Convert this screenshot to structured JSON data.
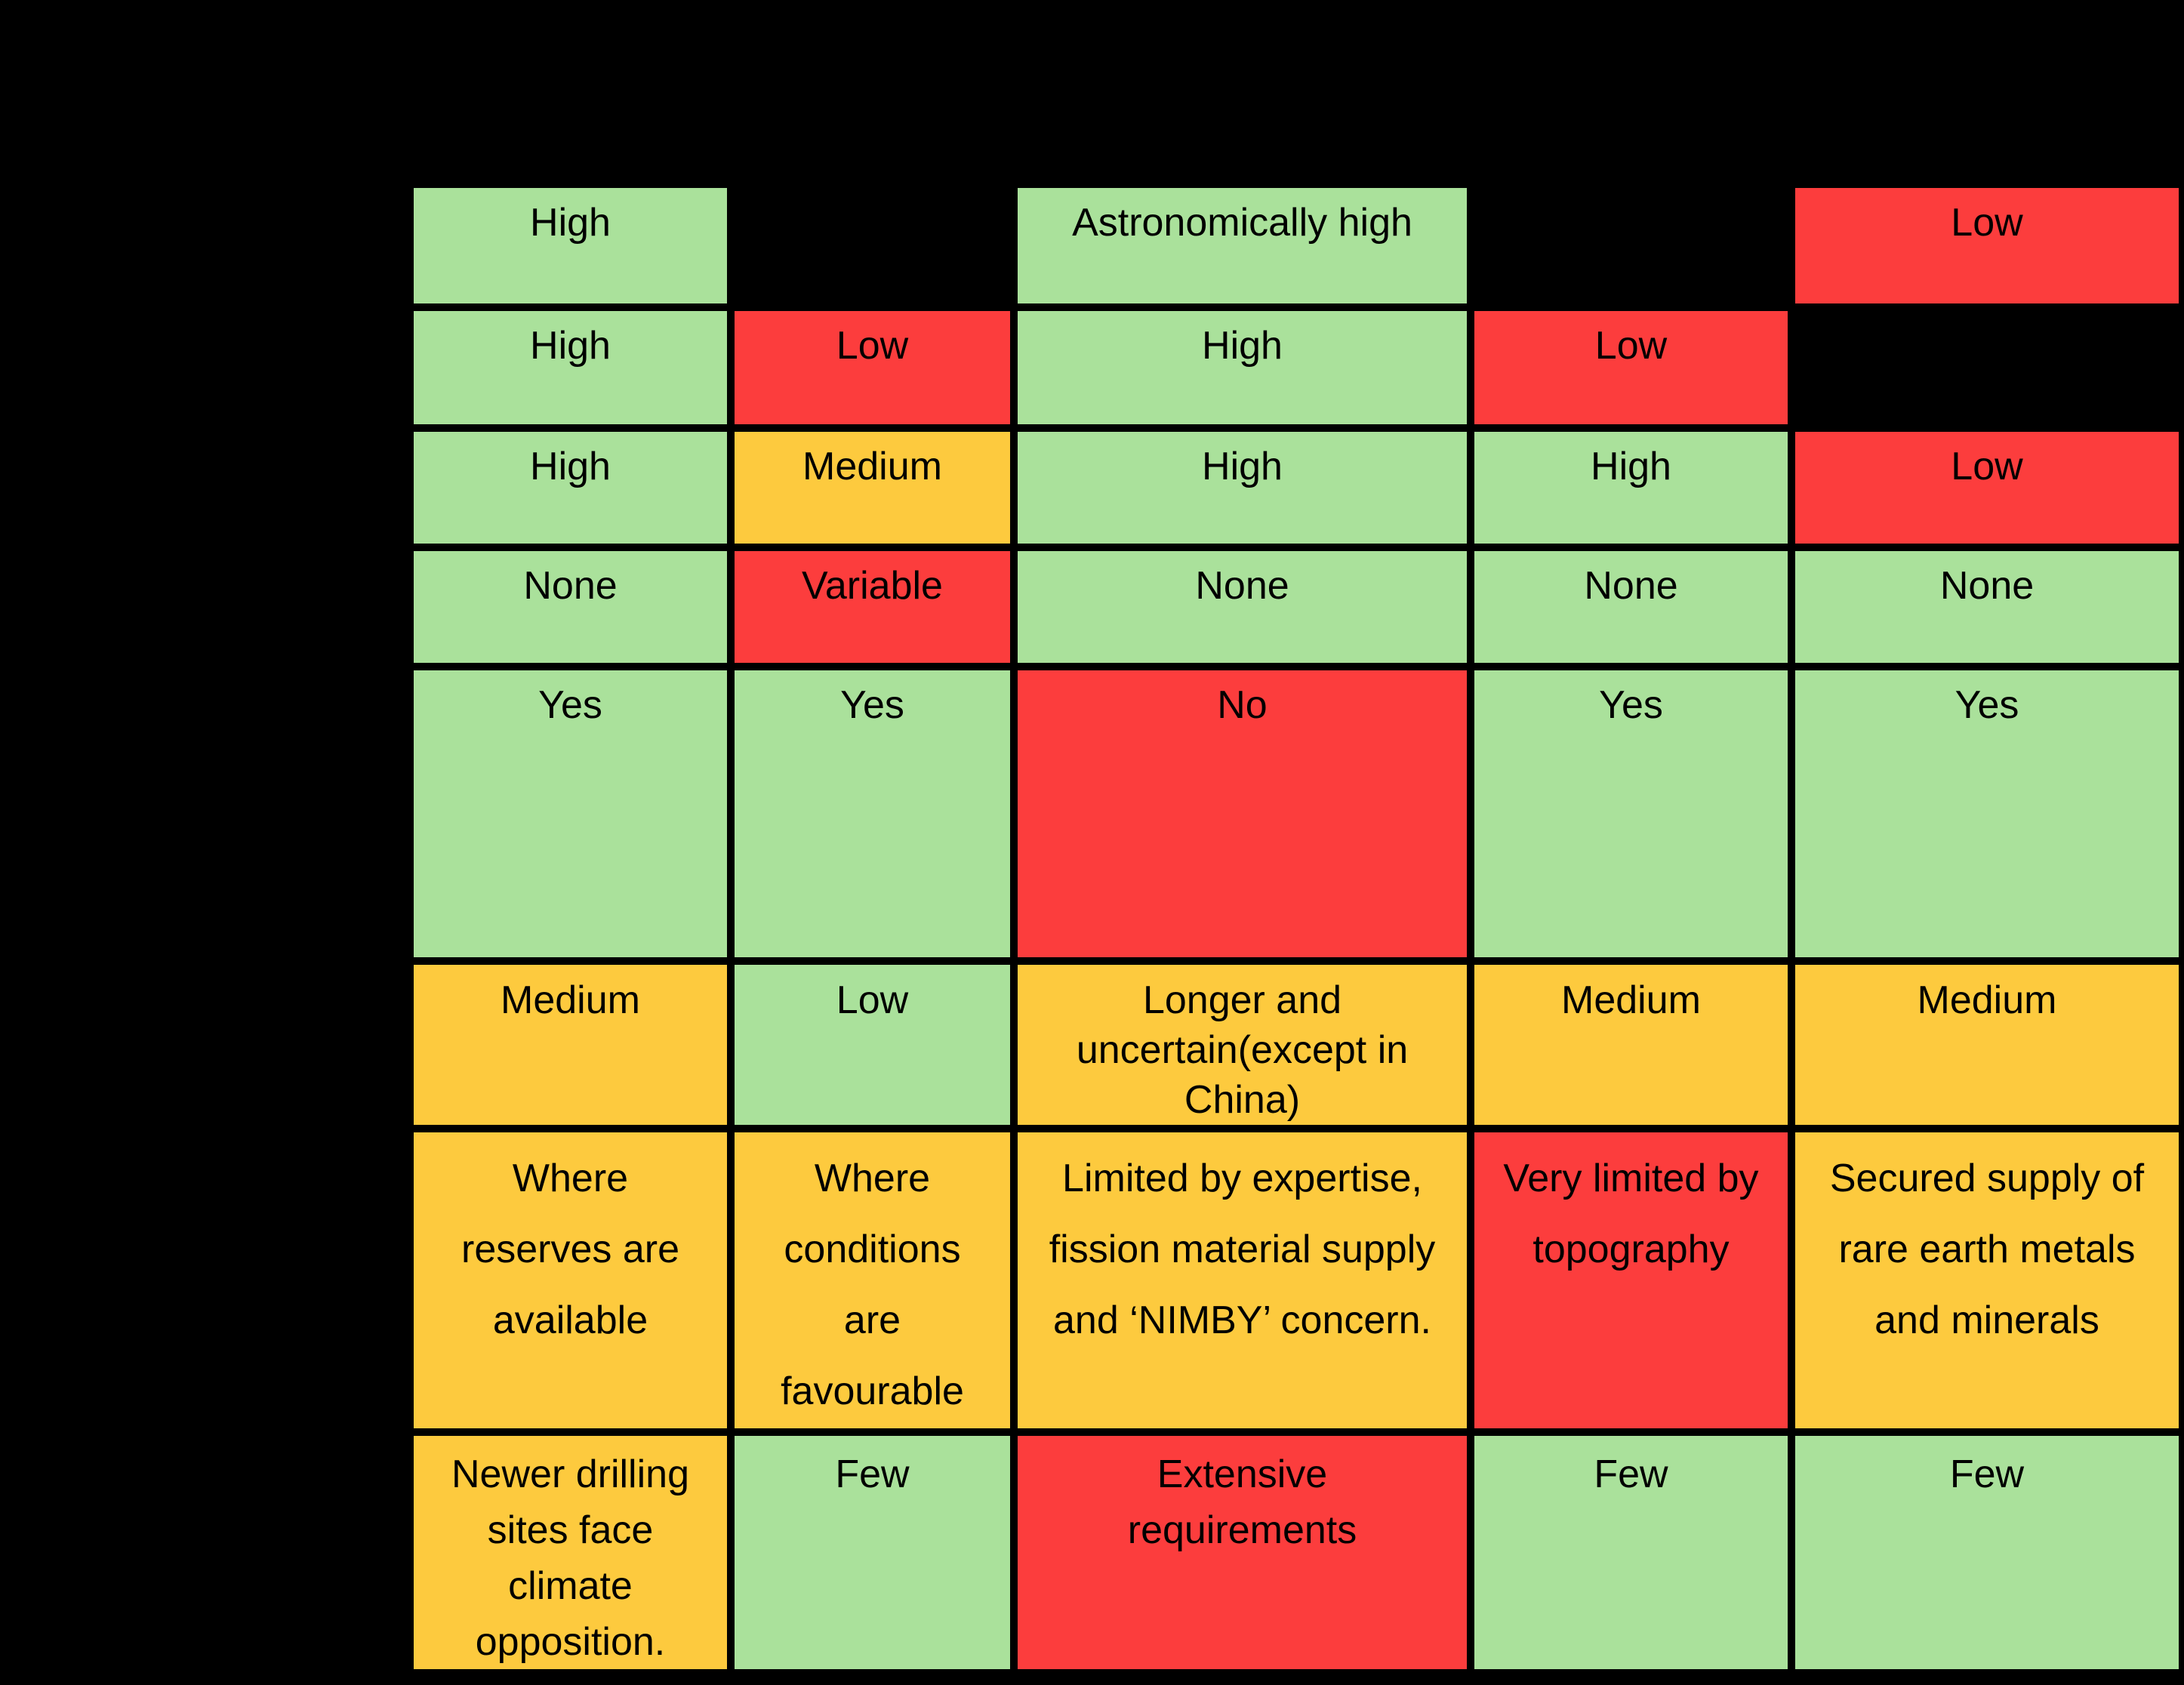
{
  "chart_data": {
    "type": "table",
    "title": "",
    "grid": {
      "columns": 5,
      "rows": 8
    },
    "background": "#000000",
    "status_colors": {
      "green": "#AAE19B",
      "yellow": "#FDCA3E",
      "red": "#FC3D3D"
    },
    "rows": [
      [
        {
          "text": "High",
          "status": "green"
        },
        {
          "text": "",
          "status": "empty"
        },
        {
          "text": "Astronomically high",
          "status": "green"
        },
        {
          "text": "",
          "status": "empty"
        },
        {
          "text": "Low",
          "status": "red"
        }
      ],
      [
        {
          "text": "High",
          "status": "green"
        },
        {
          "text": "Low",
          "status": "red"
        },
        {
          "text": "High",
          "status": "green"
        },
        {
          "text": "Low",
          "status": "red"
        },
        {
          "text": "",
          "status": "empty"
        }
      ],
      [
        {
          "text": "High",
          "status": "green"
        },
        {
          "text": "Medium",
          "status": "yellow"
        },
        {
          "text": "High",
          "status": "green"
        },
        {
          "text": "High",
          "status": "green"
        },
        {
          "text": "Low",
          "status": "red"
        }
      ],
      [
        {
          "text": "None",
          "status": "green"
        },
        {
          "text": "Variable",
          "status": "red"
        },
        {
          "text": "None",
          "status": "green"
        },
        {
          "text": "None",
          "status": "green"
        },
        {
          "text": "None",
          "status": "green"
        }
      ],
      [
        {
          "text": "Yes",
          "status": "green"
        },
        {
          "text": "Yes",
          "status": "green"
        },
        {
          "text": "No",
          "status": "red"
        },
        {
          "text": "Yes",
          "status": "green"
        },
        {
          "text": "Yes",
          "status": "green"
        }
      ],
      [
        {
          "text": "Medium",
          "status": "yellow"
        },
        {
          "text": "Low",
          "status": "green"
        },
        {
          "text": "Longer and\nuncertain(except in\nChina)",
          "status": "yellow"
        },
        {
          "text": "Medium",
          "status": "yellow"
        },
        {
          "text": "Medium",
          "status": "yellow"
        }
      ],
      [
        {
          "text": "Where\nreserves are\navailable",
          "status": "yellow"
        },
        {
          "text": "Where\nconditions\nare\nfavourable",
          "status": "yellow"
        },
        {
          "text": "Limited by expertise,\nfission material supply\nand ‘NIMBY’ concern.",
          "status": "yellow"
        },
        {
          "text": "Very limited by\ntopography",
          "status": "red"
        },
        {
          "text": "Secured supply of\nrare earth metals\nand minerals",
          "status": "yellow"
        }
      ],
      [
        {
          "text": "Newer drilling\nsites face\nclimate\nopposition.",
          "status": "yellow"
        },
        {
          "text": "Few",
          "status": "green"
        },
        {
          "text": "Extensive\nrequirements",
          "status": "red"
        },
        {
          "text": "Few",
          "status": "green"
        },
        {
          "text": "Few",
          "status": "green"
        }
      ]
    ]
  }
}
